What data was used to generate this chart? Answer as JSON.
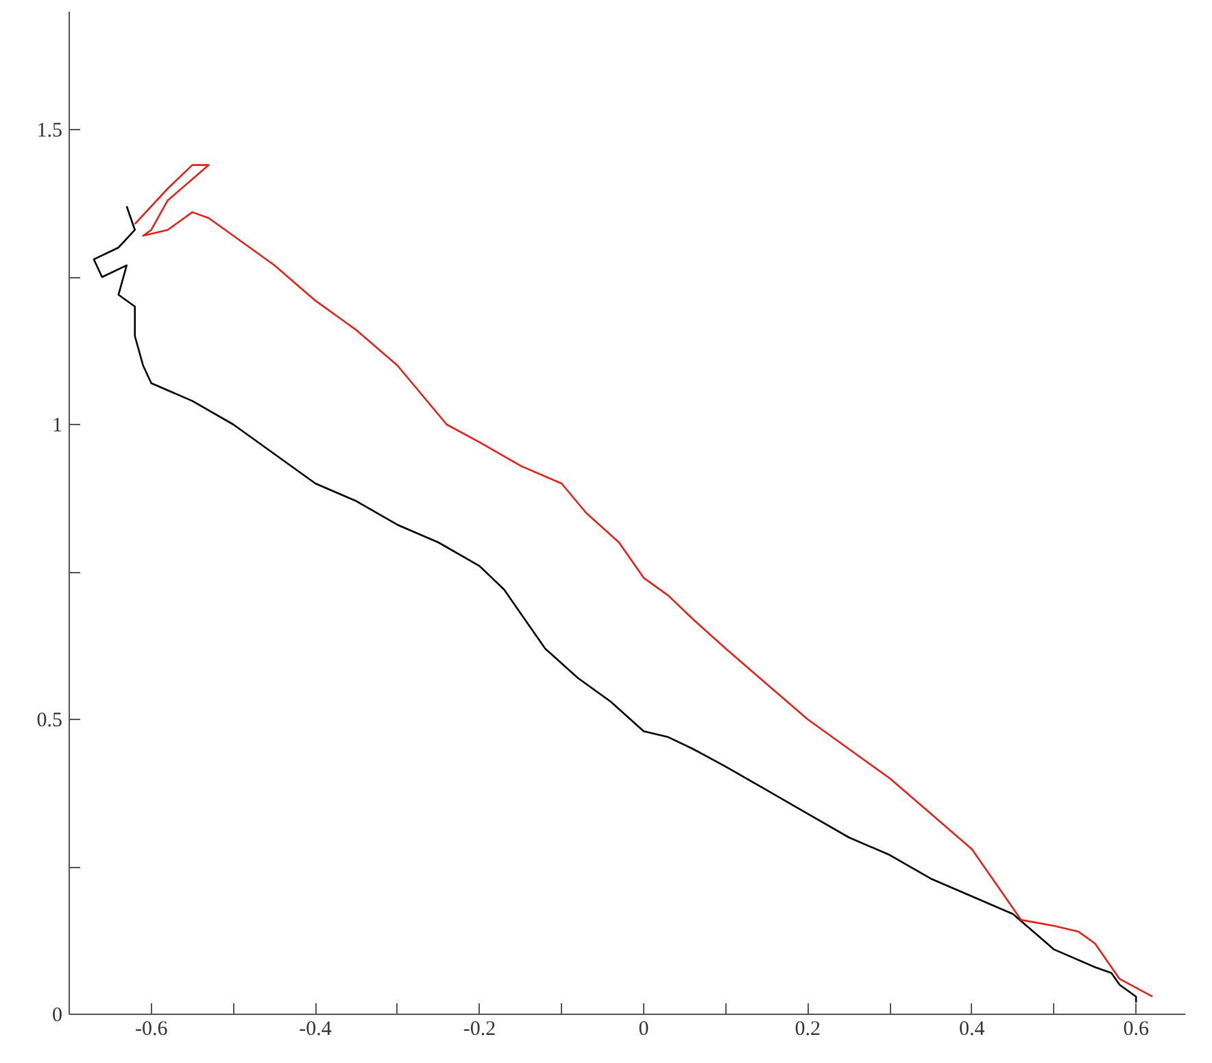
{
  "chart_data": {
    "type": "line",
    "xlim": [
      -0.7,
      0.66
    ],
    "ylim": [
      0,
      1.7
    ],
    "xticks": [
      {
        "value": -0.6,
        "label": "-0.6"
      },
      {
        "value": -0.5,
        "label": null
      },
      {
        "value": -0.4,
        "label": "-0.4"
      },
      {
        "value": -0.3,
        "label": null
      },
      {
        "value": -0.2,
        "label": "-0.2"
      },
      {
        "value": -0.1,
        "label": null
      },
      0,
      {
        "value": 0.1,
        "label": null
      },
      0.2,
      {
        "value": 0.3,
        "label": null
      },
      0.4,
      {
        "value": 0.5,
        "label": null
      },
      0.6
    ],
    "yticks": [
      0,
      {
        "value": 0.25,
        "label": null
      },
      0.5,
      {
        "value": 0.75,
        "label": null
      },
      1,
      {
        "value": 1.25,
        "label": null
      },
      1.5
    ],
    "grid": false,
    "marker": "none",
    "line_style": "solid",
    "series": [
      {
        "color": "#000000",
        "x": [
          -0.63,
          -0.62,
          -0.64,
          -0.67,
          -0.66,
          -0.63,
          -0.64,
          -0.62,
          -0.62,
          -0.61,
          -0.6,
          -0.55,
          -0.5,
          -0.45,
          -0.4,
          -0.35,
          -0.3,
          -0.25,
          -0.2,
          -0.17,
          -0.15,
          -0.12,
          -0.08,
          -0.04,
          0,
          0.03,
          0.06,
          0.1,
          0.15,
          0.2,
          0.25,
          0.3,
          0.35,
          0.4,
          0.45,
          0.5,
          0.55,
          0.57,
          0.58,
          0.6,
          0.6
        ],
        "values": [
          1.37,
          1.33,
          1.3,
          1.28,
          1.25,
          1.27,
          1.22,
          1.2,
          1.15,
          1.1,
          1.07,
          1.04,
          1.0,
          0.95,
          0.9,
          0.87,
          0.83,
          0.8,
          0.76,
          0.72,
          0.68,
          0.62,
          0.57,
          0.53,
          0.48,
          0.47,
          0.45,
          0.42,
          0.38,
          0.34,
          0.3,
          0.27,
          0.23,
          0.2,
          0.17,
          0.11,
          0.08,
          0.07,
          0.05,
          0.03,
          0.02
        ]
      },
      {
        "color": "#e8201a",
        "x": [
          -0.62,
          -0.58,
          -0.55,
          -0.53,
          -0.58,
          -0.6,
          -0.61,
          -0.58,
          -0.55,
          -0.53,
          -0.5,
          -0.45,
          -0.4,
          -0.35,
          -0.3,
          -0.27,
          -0.24,
          -0.2,
          -0.15,
          -0.1,
          -0.07,
          -0.03,
          0,
          0.03,
          0.06,
          0.1,
          0.15,
          0.2,
          0.25,
          0.3,
          0.35,
          0.4,
          0.43,
          0.46,
          0.5,
          0.53,
          0.55,
          0.58,
          0.62
        ],
        "values": [
          1.34,
          1.4,
          1.44,
          1.44,
          1.38,
          1.33,
          1.32,
          1.33,
          1.36,
          1.35,
          1.32,
          1.27,
          1.21,
          1.16,
          1.1,
          1.05,
          1.0,
          0.97,
          0.93,
          0.9,
          0.85,
          0.8,
          0.74,
          0.71,
          0.67,
          0.62,
          0.56,
          0.5,
          0.45,
          0.4,
          0.34,
          0.28,
          0.22,
          0.16,
          0.15,
          0.14,
          0.12,
          0.06,
          0.03
        ]
      }
    ]
  }
}
